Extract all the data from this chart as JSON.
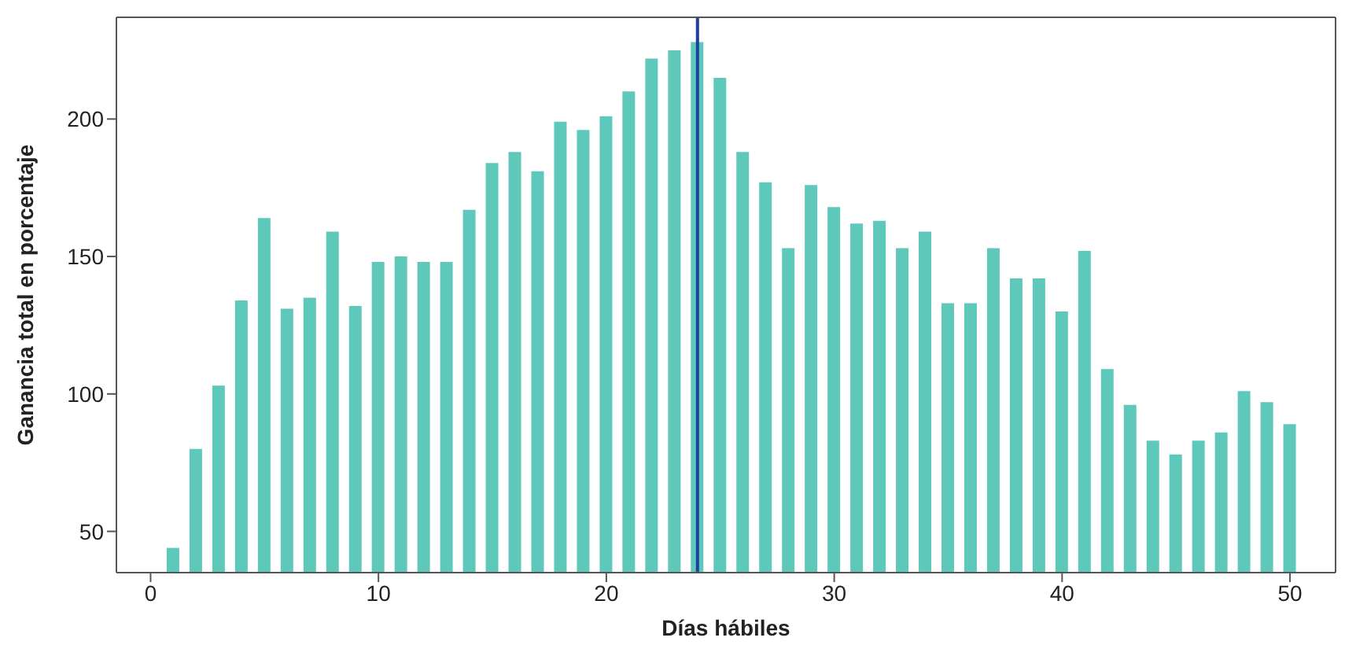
{
  "chart_data": {
    "type": "bar",
    "xlabel": "Días hábiles",
    "ylabel": "Ganancia total en porcentaje",
    "x": [
      1,
      2,
      3,
      4,
      5,
      6,
      7,
      8,
      9,
      10,
      11,
      12,
      13,
      14,
      15,
      16,
      17,
      18,
      19,
      20,
      21,
      22,
      23,
      24,
      25,
      26,
      27,
      28,
      29,
      30,
      31,
      32,
      33,
      34,
      35,
      36,
      37,
      38,
      39,
      40,
      41,
      42,
      43,
      44,
      45,
      46,
      47,
      48,
      49,
      50
    ],
    "values": [
      44,
      80,
      103,
      134,
      164,
      131,
      135,
      159,
      132,
      148,
      150,
      148,
      148,
      167,
      184,
      188,
      181,
      199,
      196,
      201,
      210,
      222,
      225,
      228,
      215,
      188,
      177,
      153,
      176,
      168,
      162,
      163,
      153,
      159,
      133,
      133,
      153,
      142,
      142,
      130,
      152,
      109,
      96,
      83,
      78,
      83,
      86,
      101,
      97,
      89
    ],
    "color": "#5ec8bb",
    "xlim": [
      -1.5,
      52
    ],
    "xticks": [
      0,
      10,
      20,
      30,
      40,
      50
    ],
    "ylim": [
      35,
      237
    ],
    "yticks": [
      50,
      100,
      150,
      200
    ],
    "ref_lines": [
      {
        "axis": "x",
        "value": 24,
        "color": "#1f3fa0"
      }
    ]
  }
}
